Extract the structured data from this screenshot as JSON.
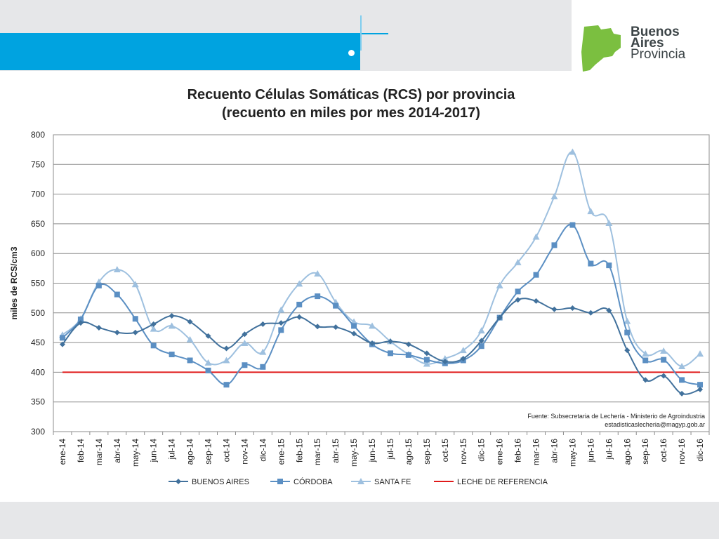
{
  "logo": {
    "line1": "Buenos",
    "line2": "Aires",
    "line3": "Provincia"
  },
  "chart_data": {
    "type": "line",
    "title_line1": "Recuento Células Somáticas (RCS) por provincia",
    "title_line2": "(recuento en miles por mes 2014-2017)",
    "ylabel": "miles de RCS/cm3",
    "xlabel": "",
    "ylim": [
      300,
      800
    ],
    "yticks": [
      300,
      350,
      400,
      450,
      500,
      550,
      600,
      650,
      700,
      750,
      800
    ],
    "grid": true,
    "legend_position": "bottom",
    "categories": [
      "ene-14",
      "feb-14",
      "mar-14",
      "abr-14",
      "may-14",
      "jun-14",
      "jul-14",
      "ago-14",
      "sep-14",
      "oct-14",
      "nov-14",
      "dic-14",
      "ene-15",
      "feb-15",
      "mar-15",
      "abr-15",
      "may-15",
      "jun-15",
      "jul-15",
      "ago-15",
      "sep-15",
      "oct-15",
      "nov-15",
      "dic-15",
      "ene-16",
      "feb-16",
      "mar-16",
      "abr-16",
      "may-16",
      "jun-16",
      "jul-16",
      "ago-16",
      "sep-16",
      "oct-16",
      "nov-16",
      "dic-16"
    ],
    "series": [
      {
        "name": "BUENOS AIRES",
        "color": "#41719c",
        "marker": "diamond",
        "values": [
          447,
          483,
          475,
          467,
          467,
          481,
          495,
          485,
          461,
          440,
          464,
          481,
          483,
          493,
          477,
          476,
          465,
          449,
          452,
          447,
          432,
          418,
          423,
          453,
          492,
          522,
          520,
          506,
          508,
          500,
          504,
          437,
          387,
          394,
          364,
          371
        ]
      },
      {
        "name": "CÓRDOBA",
        "color": "#5b8fc3",
        "marker": "square",
        "values": [
          458,
          489,
          546,
          531,
          490,
          445,
          430,
          420,
          403,
          379,
          412,
          409,
          471,
          514,
          528,
          512,
          478,
          447,
          432,
          429,
          421,
          415,
          420,
          444,
          492,
          536,
          564,
          614,
          648,
          583,
          580,
          467,
          420,
          421,
          387,
          379
        ]
      },
      {
        "name": "SANTA FE",
        "color": "#9ec0df",
        "marker": "triangle",
        "values": [
          463,
          490,
          552,
          573,
          548,
          473,
          478,
          455,
          416,
          420,
          449,
          434,
          505,
          549,
          566,
          518,
          485,
          478,
          452,
          430,
          414,
          423,
          437,
          470,
          546,
          585,
          628,
          696,
          771,
          671,
          651,
          486,
          431,
          436,
          410,
          431
        ]
      },
      {
        "name": "LECHE DE REFERENCIA",
        "color": "#e01a1a",
        "marker": "none",
        "values": [
          400,
          400,
          400,
          400,
          400,
          400,
          400,
          400,
          400,
          400,
          400,
          400,
          400,
          400,
          400,
          400,
          400,
          400,
          400,
          400,
          400,
          400,
          400,
          400,
          400,
          400,
          400,
          400,
          400,
          400,
          400,
          400,
          400,
          400,
          400,
          400
        ]
      }
    ],
    "annotations": [
      "Fuente: Subsecretaria de Lechería - Ministerio de Agroindustria",
      "estadisticaslecheria@magyp.gob.ar"
    ]
  }
}
